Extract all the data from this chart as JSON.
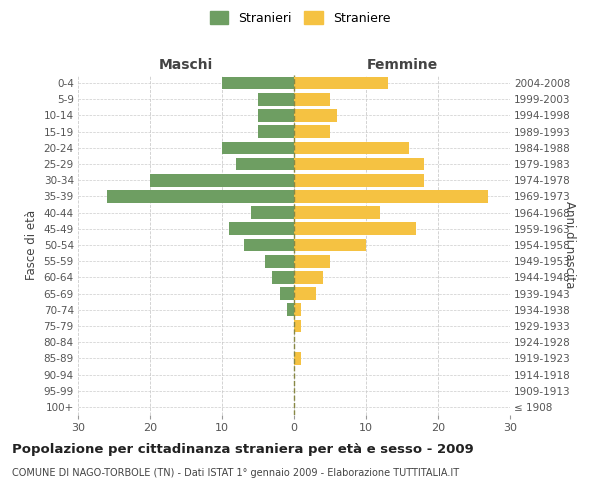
{
  "age_groups": [
    "100+",
    "95-99",
    "90-94",
    "85-89",
    "80-84",
    "75-79",
    "70-74",
    "65-69",
    "60-64",
    "55-59",
    "50-54",
    "45-49",
    "40-44",
    "35-39",
    "30-34",
    "25-29",
    "20-24",
    "15-19",
    "10-14",
    "5-9",
    "0-4"
  ],
  "birth_years": [
    "≤ 1908",
    "1909-1913",
    "1914-1918",
    "1919-1923",
    "1924-1928",
    "1929-1933",
    "1934-1938",
    "1939-1943",
    "1944-1948",
    "1949-1953",
    "1954-1958",
    "1959-1963",
    "1964-1968",
    "1969-1973",
    "1974-1978",
    "1979-1983",
    "1984-1988",
    "1989-1993",
    "1994-1998",
    "1999-2003",
    "2004-2008"
  ],
  "males": [
    0,
    0,
    0,
    0,
    0,
    0,
    1,
    2,
    3,
    4,
    7,
    9,
    6,
    26,
    20,
    8,
    10,
    5,
    5,
    5,
    10
  ],
  "females": [
    0,
    0,
    0,
    1,
    0,
    1,
    1,
    3,
    4,
    5,
    10,
    17,
    12,
    27,
    18,
    18,
    16,
    5,
    6,
    5,
    13
  ],
  "male_color": "#6e9e62",
  "female_color": "#f5c242",
  "background_color": "#ffffff",
  "grid_color": "#cccccc",
  "title": "Popolazione per cittadinanza straniera per età e sesso - 2009",
  "subtitle": "COMUNE DI NAGO-TORBOLE (TN) - Dati ISTAT 1° gennaio 2009 - Elaborazione TUTTITALIA.IT",
  "xlabel_left": "Maschi",
  "xlabel_right": "Femmine",
  "ylabel_left": "Fasce di età",
  "ylabel_right": "Anni di nascita",
  "legend_male": "Stranieri",
  "legend_female": "Straniere",
  "xlim": 30,
  "title_fontsize": 9.5,
  "subtitle_fontsize": 7.0
}
